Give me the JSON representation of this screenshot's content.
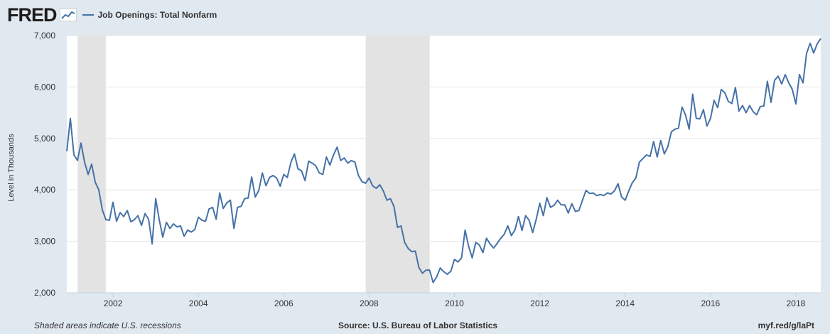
{
  "header": {
    "logo_text": "FRED",
    "logo_icon": "fred-trend-icon",
    "series_legend": "Job Openings: Total Nonfarm"
  },
  "footer": {
    "left": "Shaded areas indicate U.S. recessions",
    "center": "Source: U.S. Bureau of Labor Statistics",
    "right": "myf.red/g/laPt"
  },
  "colors": {
    "background": "#e1e9f0",
    "plot_background": "#ffffff",
    "series": "#4572a7",
    "recession": "#e3e3e3",
    "grid": "#e6e6e6"
  },
  "chart_data": {
    "type": "line",
    "title": "",
    "xlabel": "",
    "ylabel": "Level in Thousands",
    "x_start": "2000-12",
    "x_frequency": "monthly",
    "xlim": [
      2000.917,
      2018.583
    ],
    "ylim": [
      2000,
      7000
    ],
    "yticks": [
      2000,
      3000,
      4000,
      5000,
      6000,
      7000
    ],
    "ytick_labels": [
      "2,000",
      "3,000",
      "4,000",
      "5,000",
      "6,000",
      "7,000"
    ],
    "xticks": [
      2002,
      2004,
      2006,
      2008,
      2010,
      2012,
      2014,
      2016,
      2018
    ],
    "xtick_labels": [
      "2002",
      "2004",
      "2006",
      "2008",
      "2010",
      "2012",
      "2014",
      "2016",
      "2018"
    ],
    "grid": "horizontal",
    "legend_position": "top-left",
    "recessions": [
      {
        "start": 2001.17,
        "end": 2001.83
      },
      {
        "start": 2007.92,
        "end": 2009.42
      }
    ],
    "series": [
      {
        "name": "Job Openings: Total Nonfarm",
        "values": [
          4750,
          5390,
          4680,
          4570,
          4910,
          4540,
          4300,
          4500,
          4150,
          4000,
          3610,
          3420,
          3410,
          3760,
          3390,
          3560,
          3480,
          3600,
          3380,
          3420,
          3500,
          3310,
          3540,
          3430,
          2950,
          3830,
          3420,
          3080,
          3370,
          3250,
          3340,
          3280,
          3300,
          3100,
          3220,
          3180,
          3230,
          3470,
          3410,
          3390,
          3630,
          3660,
          3430,
          3940,
          3640,
          3750,
          3800,
          3250,
          3660,
          3680,
          3830,
          3840,
          4250,
          3860,
          3990,
          4330,
          4080,
          4240,
          4280,
          4230,
          4070,
          4300,
          4240,
          4530,
          4700,
          4410,
          4370,
          4180,
          4560,
          4520,
          4470,
          4330,
          4300,
          4640,
          4480,
          4680,
          4830,
          4570,
          4620,
          4520,
          4570,
          4540,
          4280,
          4160,
          4130,
          4230,
          4080,
          4030,
          4100,
          3980,
          3800,
          3830,
          3680,
          3270,
          3300,
          2980,
          2860,
          2800,
          2810,
          2490,
          2380,
          2440,
          2440,
          2200,
          2310,
          2480,
          2410,
          2360,
          2420,
          2650,
          2600,
          2680,
          3220,
          2900,
          2680,
          2980,
          2930,
          2780,
          3060,
          2950,
          2870,
          2960,
          3060,
          3140,
          3300,
          3110,
          3220,
          3480,
          3210,
          3500,
          3410,
          3170,
          3430,
          3740,
          3500,
          3850,
          3660,
          3700,
          3800,
          3710,
          3710,
          3550,
          3730,
          3580,
          3600,
          3800,
          3990,
          3930,
          3940,
          3890,
          3910,
          3890,
          3940,
          3920,
          3980,
          4120,
          3860,
          3800,
          3980,
          4140,
          4230,
          4540,
          4610,
          4680,
          4650,
          4940,
          4640,
          4960,
          4700,
          4840,
          5130,
          5180,
          5200,
          5610,
          5450,
          5180,
          5860,
          5390,
          5380,
          5560,
          5240,
          5390,
          5740,
          5600,
          5950,
          5890,
          5720,
          5680,
          5990,
          5530,
          5640,
          5500,
          5640,
          5520,
          5460,
          5620,
          5630,
          6110,
          5700,
          6130,
          6210,
          6060,
          6240,
          6080,
          5950,
          5670,
          6240,
          6080,
          6650,
          6850,
          6660,
          6840,
          6940
        ]
      }
    ]
  }
}
